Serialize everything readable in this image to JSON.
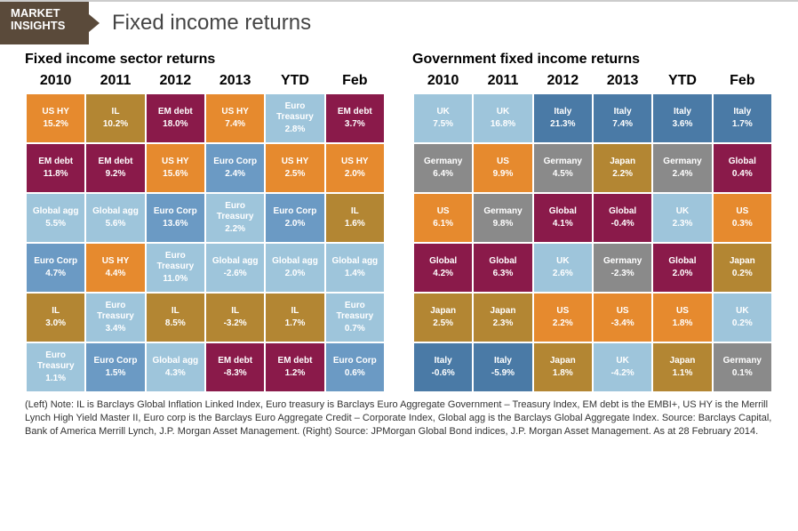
{
  "header": {
    "badge_line1": "MARKET",
    "badge_line2": "INSIGHTS",
    "title": "Fixed income returns"
  },
  "colors": {
    "orange": "#e68a2e",
    "maroon": "#8a1a4a",
    "lightblue": "#9ec5db",
    "steelblue": "#6b9ac4",
    "brown": "#b38633",
    "gray": "#8a8a8a",
    "darkblue": "#4a7aa6"
  },
  "tables": [
    {
      "title": "Fixed income sector returns",
      "headers": [
        "2010",
        "2011",
        "2012",
        "2013",
        "YTD",
        "Feb"
      ],
      "rows": [
        [
          {
            "label": "US HY",
            "value": "15.2%",
            "c": "orange"
          },
          {
            "label": "IL",
            "value": "10.2%",
            "c": "brown"
          },
          {
            "label": "EM debt",
            "value": "18.0%",
            "c": "maroon"
          },
          {
            "label": "US HY",
            "value": "7.4%",
            "c": "orange"
          },
          {
            "label": "Euro Treasury",
            "value": "2.8%",
            "c": "lightblue"
          },
          {
            "label": "EM debt",
            "value": "3.7%",
            "c": "maroon"
          }
        ],
        [
          {
            "label": "EM debt",
            "value": "11.8%",
            "c": "maroon"
          },
          {
            "label": "EM debt",
            "value": "9.2%",
            "c": "maroon"
          },
          {
            "label": "US HY",
            "value": "15.6%",
            "c": "orange"
          },
          {
            "label": "Euro Corp",
            "value": "2.4%",
            "c": "steelblue"
          },
          {
            "label": "US HY",
            "value": "2.5%",
            "c": "orange"
          },
          {
            "label": "US HY",
            "value": "2.0%",
            "c": "orange"
          }
        ],
        [
          {
            "label": "Global agg",
            "value": "5.5%",
            "c": "lightblue"
          },
          {
            "label": "Global agg",
            "value": "5.6%",
            "c": "lightblue"
          },
          {
            "label": "Euro Corp",
            "value": "13.6%",
            "c": "steelblue"
          },
          {
            "label": "Euro Treasury",
            "value": "2.2%",
            "c": "lightblue"
          },
          {
            "label": "Euro Corp",
            "value": "2.0%",
            "c": "steelblue"
          },
          {
            "label": "IL",
            "value": "1.6%",
            "c": "brown"
          }
        ],
        [
          {
            "label": "Euro Corp",
            "value": "4.7%",
            "c": "steelblue"
          },
          {
            "label": "US HY",
            "value": "4.4%",
            "c": "orange"
          },
          {
            "label": "Euro Treasury",
            "value": "11.0%",
            "c": "lightblue"
          },
          {
            "label": "Global agg",
            "value": "-2.6%",
            "c": "lightblue"
          },
          {
            "label": "Global agg",
            "value": "2.0%",
            "c": "lightblue"
          },
          {
            "label": "Global agg",
            "value": "1.4%",
            "c": "lightblue"
          }
        ],
        [
          {
            "label": "IL",
            "value": "3.0%",
            "c": "brown"
          },
          {
            "label": "Euro Treasury",
            "value": "3.4%",
            "c": "lightblue"
          },
          {
            "label": "IL",
            "value": "8.5%",
            "c": "brown"
          },
          {
            "label": "IL",
            "value": "-3.2%",
            "c": "brown"
          },
          {
            "label": "IL",
            "value": "1.7%",
            "c": "brown"
          },
          {
            "label": "Euro Treasury",
            "value": "0.7%",
            "c": "lightblue"
          }
        ],
        [
          {
            "label": "Euro Treasury",
            "value": "1.1%",
            "c": "lightblue"
          },
          {
            "label": "Euro Corp",
            "value": "1.5%",
            "c": "steelblue"
          },
          {
            "label": "Global agg",
            "value": "4.3%",
            "c": "lightblue"
          },
          {
            "label": "EM debt",
            "value": "-8.3%",
            "c": "maroon"
          },
          {
            "label": "EM debt",
            "value": "1.2%",
            "c": "maroon"
          },
          {
            "label": "Euro Corp",
            "value": "0.6%",
            "c": "steelblue"
          }
        ]
      ]
    },
    {
      "title": "Government fixed income returns",
      "headers": [
        "2010",
        "2011",
        "2012",
        "2013",
        "YTD",
        "Feb"
      ],
      "rows": [
        [
          {
            "label": "UK",
            "value": "7.5%",
            "c": "lightblue"
          },
          {
            "label": "UK",
            "value": "16.8%",
            "c": "lightblue"
          },
          {
            "label": "Italy",
            "value": "21.3%",
            "c": "darkblue"
          },
          {
            "label": "Italy",
            "value": "7.4%",
            "c": "darkblue"
          },
          {
            "label": "Italy",
            "value": "3.6%",
            "c": "darkblue"
          },
          {
            "label": "Italy",
            "value": "1.7%",
            "c": "darkblue"
          }
        ],
        [
          {
            "label": "Germany",
            "value": "6.4%",
            "c": "gray"
          },
          {
            "label": "US",
            "value": "9.9%",
            "c": "orange"
          },
          {
            "label": "Germany",
            "value": "4.5%",
            "c": "gray"
          },
          {
            "label": "Japan",
            "value": "2.2%",
            "c": "brown"
          },
          {
            "label": "Germany",
            "value": "2.4%",
            "c": "gray"
          },
          {
            "label": "Global",
            "value": "0.4%",
            "c": "maroon"
          }
        ],
        [
          {
            "label": "US",
            "value": "6.1%",
            "c": "orange"
          },
          {
            "label": "Germany",
            "value": "9.8%",
            "c": "gray"
          },
          {
            "label": "Global",
            "value": "4.1%",
            "c": "maroon"
          },
          {
            "label": "Global",
            "value": "-0.4%",
            "c": "maroon"
          },
          {
            "label": "UK",
            "value": "2.3%",
            "c": "lightblue"
          },
          {
            "label": "US",
            "value": "0.3%",
            "c": "orange"
          }
        ],
        [
          {
            "label": "Global",
            "value": "4.2%",
            "c": "maroon"
          },
          {
            "label": "Global",
            "value": "6.3%",
            "c": "maroon"
          },
          {
            "label": "UK",
            "value": "2.6%",
            "c": "lightblue"
          },
          {
            "label": "Germany",
            "value": "-2.3%",
            "c": "gray"
          },
          {
            "label": "Global",
            "value": "2.0%",
            "c": "maroon"
          },
          {
            "label": "Japan",
            "value": "0.2%",
            "c": "brown"
          }
        ],
        [
          {
            "label": "Japan",
            "value": "2.5%",
            "c": "brown"
          },
          {
            "label": "Japan",
            "value": "2.3%",
            "c": "brown"
          },
          {
            "label": "US",
            "value": "2.2%",
            "c": "orange"
          },
          {
            "label": "US",
            "value": "-3.4%",
            "c": "orange"
          },
          {
            "label": "US",
            "value": "1.8%",
            "c": "orange"
          },
          {
            "label": "UK",
            "value": "0.2%",
            "c": "lightblue"
          }
        ],
        [
          {
            "label": "Italy",
            "value": "-0.6%",
            "c": "darkblue"
          },
          {
            "label": "Italy",
            "value": "-5.9%",
            "c": "darkblue"
          },
          {
            "label": "Japan",
            "value": "1.8%",
            "c": "brown"
          },
          {
            "label": "UK",
            "value": "-4.2%",
            "c": "lightblue"
          },
          {
            "label": "Japan",
            "value": "1.1%",
            "c": "brown"
          },
          {
            "label": "Germany",
            "value": "0.1%",
            "c": "gray"
          }
        ]
      ]
    }
  ],
  "footnote": "(Left) Note: IL is Barclays Global Inflation Linked Index, Euro treasury is Barclays Euro Aggregate Government – Treasury Index, EM debt is the EMBI+, US HY is the Merrill Lynch High Yield Master II, Euro corp is the Barclays Euro Aggregate Credit – Corporate Index, Global agg is the Barclays Global Aggregate Index. Source: Barclays Capital, Bank of America Merrill Lynch, J.P. Morgan Asset Management. (Right) Source: JPMorgan Global Bond indices, J.P. Morgan Asset Management. As at  28 February 2014."
}
